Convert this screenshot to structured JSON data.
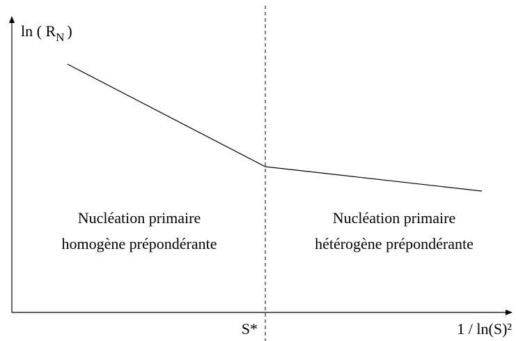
{
  "y_axis_label": {
    "main": "ln ( R",
    "subscript": "N",
    "close": ")"
  },
  "x_axis_label": "1 / ln(S)²",
  "threshold_label": "S*",
  "regions": [
    {
      "lines": [
        "Nucléation primaire",
        "homogène prépondérante"
      ]
    },
    {
      "lines": [
        "Nucléation primaire",
        "hétérogène prépondérante"
      ]
    }
  ]
}
